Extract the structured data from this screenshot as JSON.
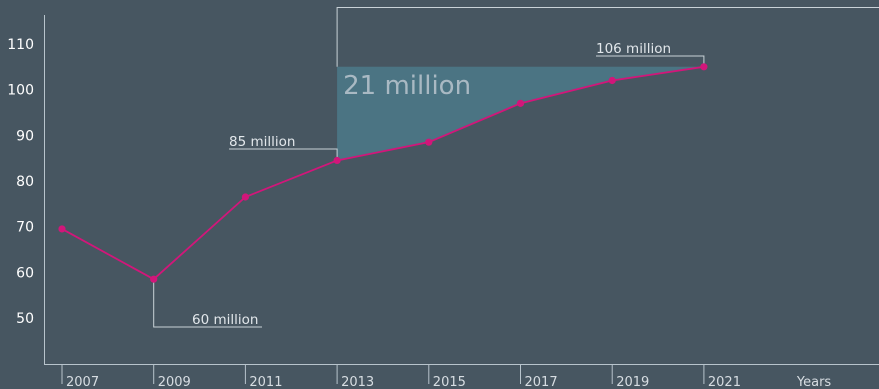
{
  "chart_data": {
    "type": "line",
    "x": [
      "2007",
      "2009",
      "2011",
      "2013",
      "2015",
      "2017",
      "2019",
      "2021"
    ],
    "series": [
      {
        "values": [
          69.5,
          58.5,
          76.5,
          84.5,
          88.5,
          97,
          102,
          105
        ]
      }
    ],
    "ylim": [
      43,
      117
    ],
    "y_ticks": [
      "50",
      "60",
      "70",
      "80",
      "90",
      "100",
      "110"
    ],
    "x_axis_label": "Years",
    "annotations": {
      "low": "60 million",
      "mid": "85 million",
      "high": "106 million",
      "gain": "21 million"
    },
    "grid": false,
    "colors": {
      "background": "#475661",
      "line": "#d2167a",
      "fill": "#4b7483",
      "axis": "#b8c4cc"
    }
  }
}
